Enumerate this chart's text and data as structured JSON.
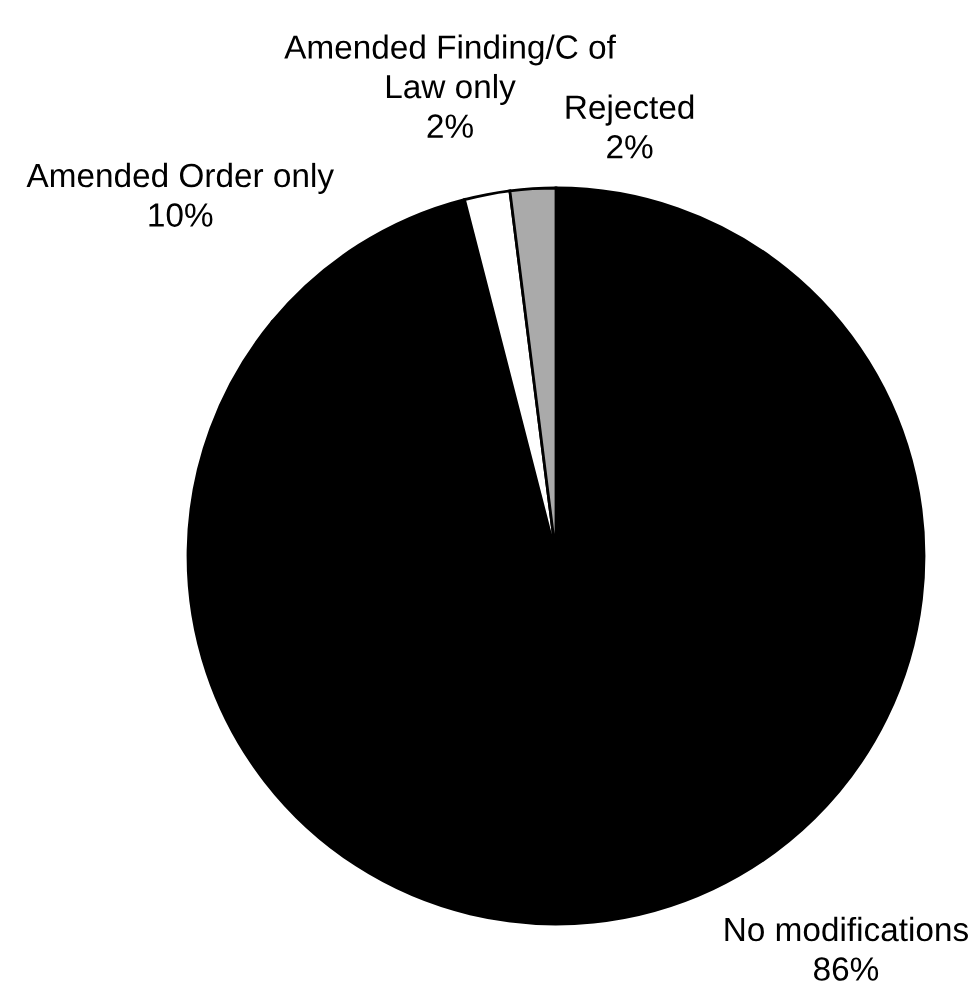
{
  "chart_data": {
    "type": "pie",
    "categories": [
      "No modifications",
      "Amended Order only",
      "Amended Finding/C of Law only",
      "Rejected"
    ],
    "values": [
      86,
      10,
      2,
      2
    ],
    "colors": [
      "#000000",
      "#000000",
      "#ffffff",
      "#aaaaaa"
    ],
    "value_labels": [
      "86%",
      "10%",
      "2%",
      "2%"
    ]
  }
}
